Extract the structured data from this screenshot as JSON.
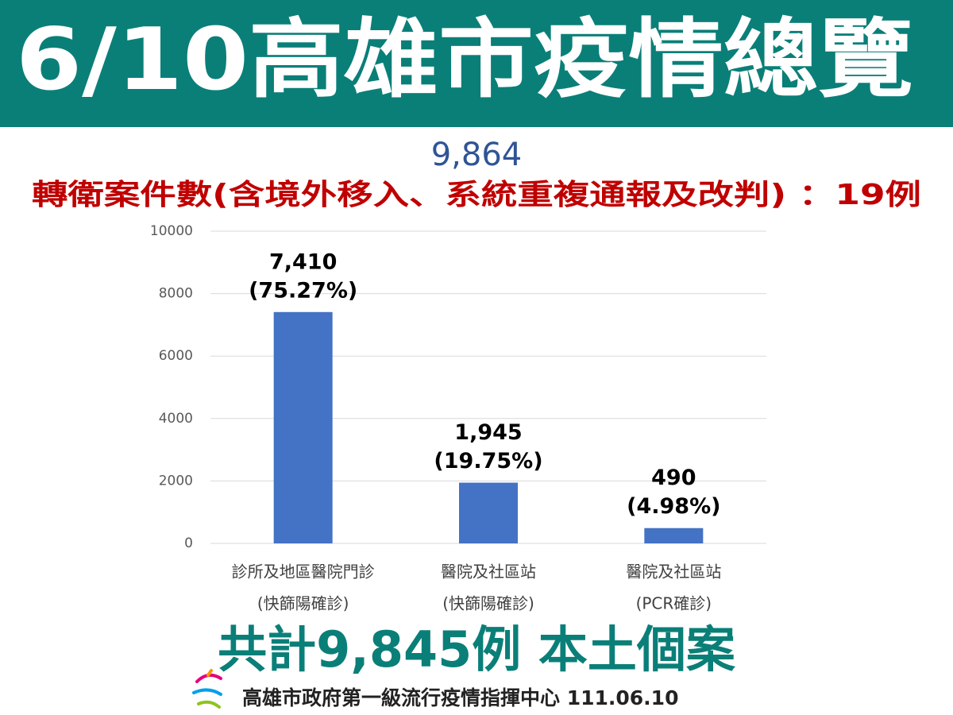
{
  "header": {
    "title": "6/10高雄市疫情總覽"
  },
  "chart_data": {
    "type": "bar",
    "subtitle": "9,864",
    "note": "轉衛案件數(含境外移入、系統重複通報及改判) ：19例",
    "categories": [
      [
        "診所及地區醫院門診",
        "(快篩陽確診)"
      ],
      [
        "醫院及社區站",
        "(快篩陽確診)"
      ],
      [
        "醫院及社區站",
        "(PCR確診)"
      ]
    ],
    "values": [
      7410,
      1945,
      490
    ],
    "value_labels": [
      "7,410",
      "1,945",
      "490"
    ],
    "share_labels": [
      "(75.27%)",
      "(19.75%)",
      "(4.98%)"
    ],
    "color": "#4472c4",
    "ylim": [
      0,
      10000
    ],
    "yticks": [
      0,
      2000,
      4000,
      6000,
      8000,
      10000
    ],
    "grid": true
  },
  "footer": {
    "total": "共計9,845例 本土個案",
    "source": "高雄市政府第一級流行疫情指揮中心 111.06.10"
  }
}
